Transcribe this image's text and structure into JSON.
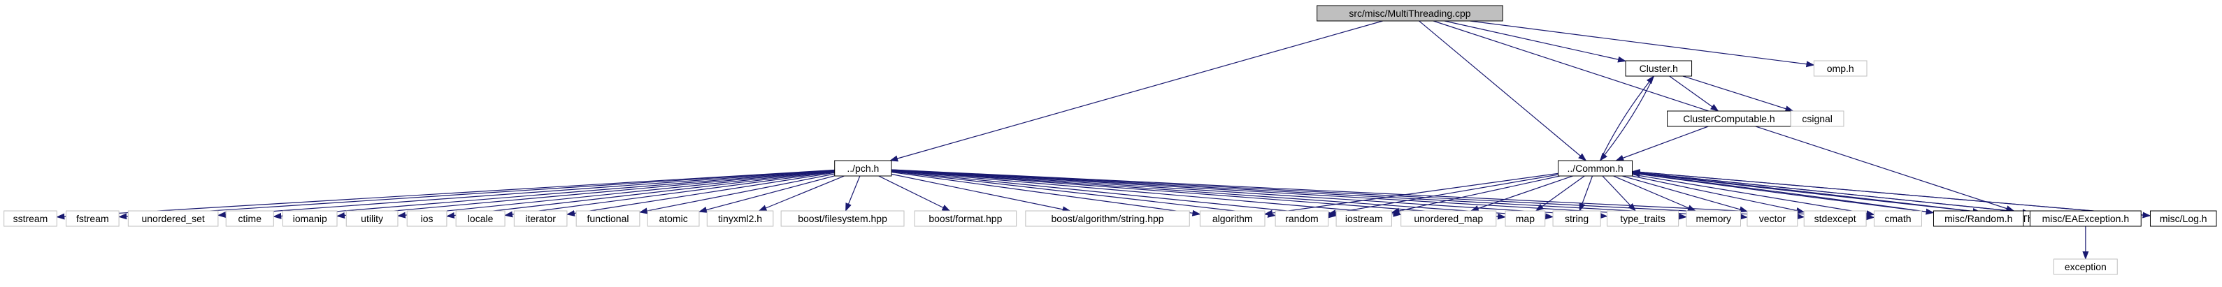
{
  "graph": {
    "edge_color": "#191970",
    "nodes": [
      {
        "id": "root",
        "label": "src/misc/MultiThreading.cpp",
        "style": "root"
      },
      {
        "id": "pch",
        "label": "../pch.h",
        "style": "doc"
      },
      {
        "id": "cluster",
        "label": "Cluster.h",
        "style": "doc"
      },
      {
        "id": "omp",
        "label": "omp.h",
        "style": "ext"
      },
      {
        "id": "common",
        "label": "../Common.h",
        "style": "doc"
      },
      {
        "id": "mt_h",
        "label": "MultiThreading.h",
        "style": "doc"
      },
      {
        "id": "clustercomp",
        "label": "ClusterComputable.h",
        "style": "doc"
      },
      {
        "id": "csignal",
        "label": "csignal",
        "style": "ext"
      },
      {
        "id": "sstream",
        "label": "sstream",
        "style": "ext"
      },
      {
        "id": "fstream",
        "label": "fstream",
        "style": "ext"
      },
      {
        "id": "unordered_set",
        "label": "unordered_set",
        "style": "ext"
      },
      {
        "id": "ctime",
        "label": "ctime",
        "style": "ext"
      },
      {
        "id": "iomanip",
        "label": "iomanip",
        "style": "ext"
      },
      {
        "id": "utility",
        "label": "utility",
        "style": "ext"
      },
      {
        "id": "ios",
        "label": "ios",
        "style": "ext"
      },
      {
        "id": "locale",
        "label": "locale",
        "style": "ext"
      },
      {
        "id": "iterator",
        "label": "iterator",
        "style": "ext"
      },
      {
        "id": "functional",
        "label": "functional",
        "style": "ext"
      },
      {
        "id": "atomic",
        "label": "atomic",
        "style": "ext"
      },
      {
        "id": "tinyxml2",
        "label": "tinyxml2.h",
        "style": "ext"
      },
      {
        "id": "boost_fs",
        "label": "boost/filesystem.hpp",
        "style": "ext"
      },
      {
        "id": "boost_fmt",
        "label": "boost/format.hpp",
        "style": "ext"
      },
      {
        "id": "boost_alg",
        "label": "boost/algorithm/string.hpp",
        "style": "ext"
      },
      {
        "id": "algorithm",
        "label": "algorithm",
        "style": "ext"
      },
      {
        "id": "random",
        "label": "random",
        "style": "ext"
      },
      {
        "id": "iostream",
        "label": "iostream",
        "style": "ext"
      },
      {
        "id": "unordered_map",
        "label": "unordered_map",
        "style": "ext"
      },
      {
        "id": "map",
        "label": "map",
        "style": "ext"
      },
      {
        "id": "string",
        "label": "string",
        "style": "ext"
      },
      {
        "id": "type_traits",
        "label": "type_traits",
        "style": "ext"
      },
      {
        "id": "memory",
        "label": "memory",
        "style": "ext"
      },
      {
        "id": "vector",
        "label": "vector",
        "style": "ext"
      },
      {
        "id": "stdexcept",
        "label": "stdexcept",
        "style": "ext"
      },
      {
        "id": "cmath",
        "label": "cmath",
        "style": "ext"
      },
      {
        "id": "misc_random",
        "label": "misc/Random.h",
        "style": "doc"
      },
      {
        "id": "misc_ea",
        "label": "misc/EAException.h",
        "style": "doc"
      },
      {
        "id": "misc_log",
        "label": "misc/Log.h",
        "style": "doc"
      },
      {
        "id": "exception",
        "label": "exception",
        "style": "ext"
      }
    ],
    "edges": [
      [
        "root",
        "pch"
      ],
      [
        "root",
        "cluster"
      ],
      [
        "root",
        "omp"
      ],
      [
        "root",
        "common"
      ],
      [
        "root",
        "mt_h"
      ],
      [
        "cluster",
        "clustercomp"
      ],
      [
        "cluster",
        "csignal"
      ],
      [
        "cluster",
        "common"
      ],
      [
        "clustercomp",
        "common"
      ],
      [
        "common",
        "cluster"
      ],
      [
        "pch",
        "sstream"
      ],
      [
        "pch",
        "fstream"
      ],
      [
        "pch",
        "unordered_set"
      ],
      [
        "pch",
        "ctime"
      ],
      [
        "pch",
        "iomanip"
      ],
      [
        "pch",
        "utility"
      ],
      [
        "pch",
        "ios"
      ],
      [
        "pch",
        "locale"
      ],
      [
        "pch",
        "iterator"
      ],
      [
        "pch",
        "functional"
      ],
      [
        "pch",
        "atomic"
      ],
      [
        "pch",
        "tinyxml2"
      ],
      [
        "pch",
        "boost_fs"
      ],
      [
        "pch",
        "boost_fmt"
      ],
      [
        "pch",
        "boost_alg"
      ],
      [
        "pch",
        "algorithm"
      ],
      [
        "pch",
        "random"
      ],
      [
        "pch",
        "iostream"
      ],
      [
        "pch",
        "unordered_map"
      ],
      [
        "pch",
        "map"
      ],
      [
        "pch",
        "string"
      ],
      [
        "pch",
        "type_traits"
      ],
      [
        "pch",
        "memory"
      ],
      [
        "pch",
        "vector"
      ],
      [
        "pch",
        "stdexcept"
      ],
      [
        "pch",
        "cmath"
      ],
      [
        "common",
        "algorithm"
      ],
      [
        "common",
        "random"
      ],
      [
        "common",
        "iostream"
      ],
      [
        "common",
        "unordered_map"
      ],
      [
        "common",
        "map"
      ],
      [
        "common",
        "string"
      ],
      [
        "common",
        "type_traits"
      ],
      [
        "common",
        "memory"
      ],
      [
        "common",
        "vector"
      ],
      [
        "common",
        "stdexcept"
      ],
      [
        "common",
        "cmath"
      ],
      [
        "common",
        "misc_random"
      ],
      [
        "common",
        "misc_ea"
      ],
      [
        "common",
        "misc_log"
      ],
      [
        "common",
        "mt_h"
      ],
      [
        "misc_random",
        "common"
      ],
      [
        "misc_ea",
        "common"
      ],
      [
        "misc_log",
        "common"
      ],
      [
        "mt_h",
        "common"
      ],
      [
        "misc_ea",
        "exception"
      ]
    ]
  }
}
